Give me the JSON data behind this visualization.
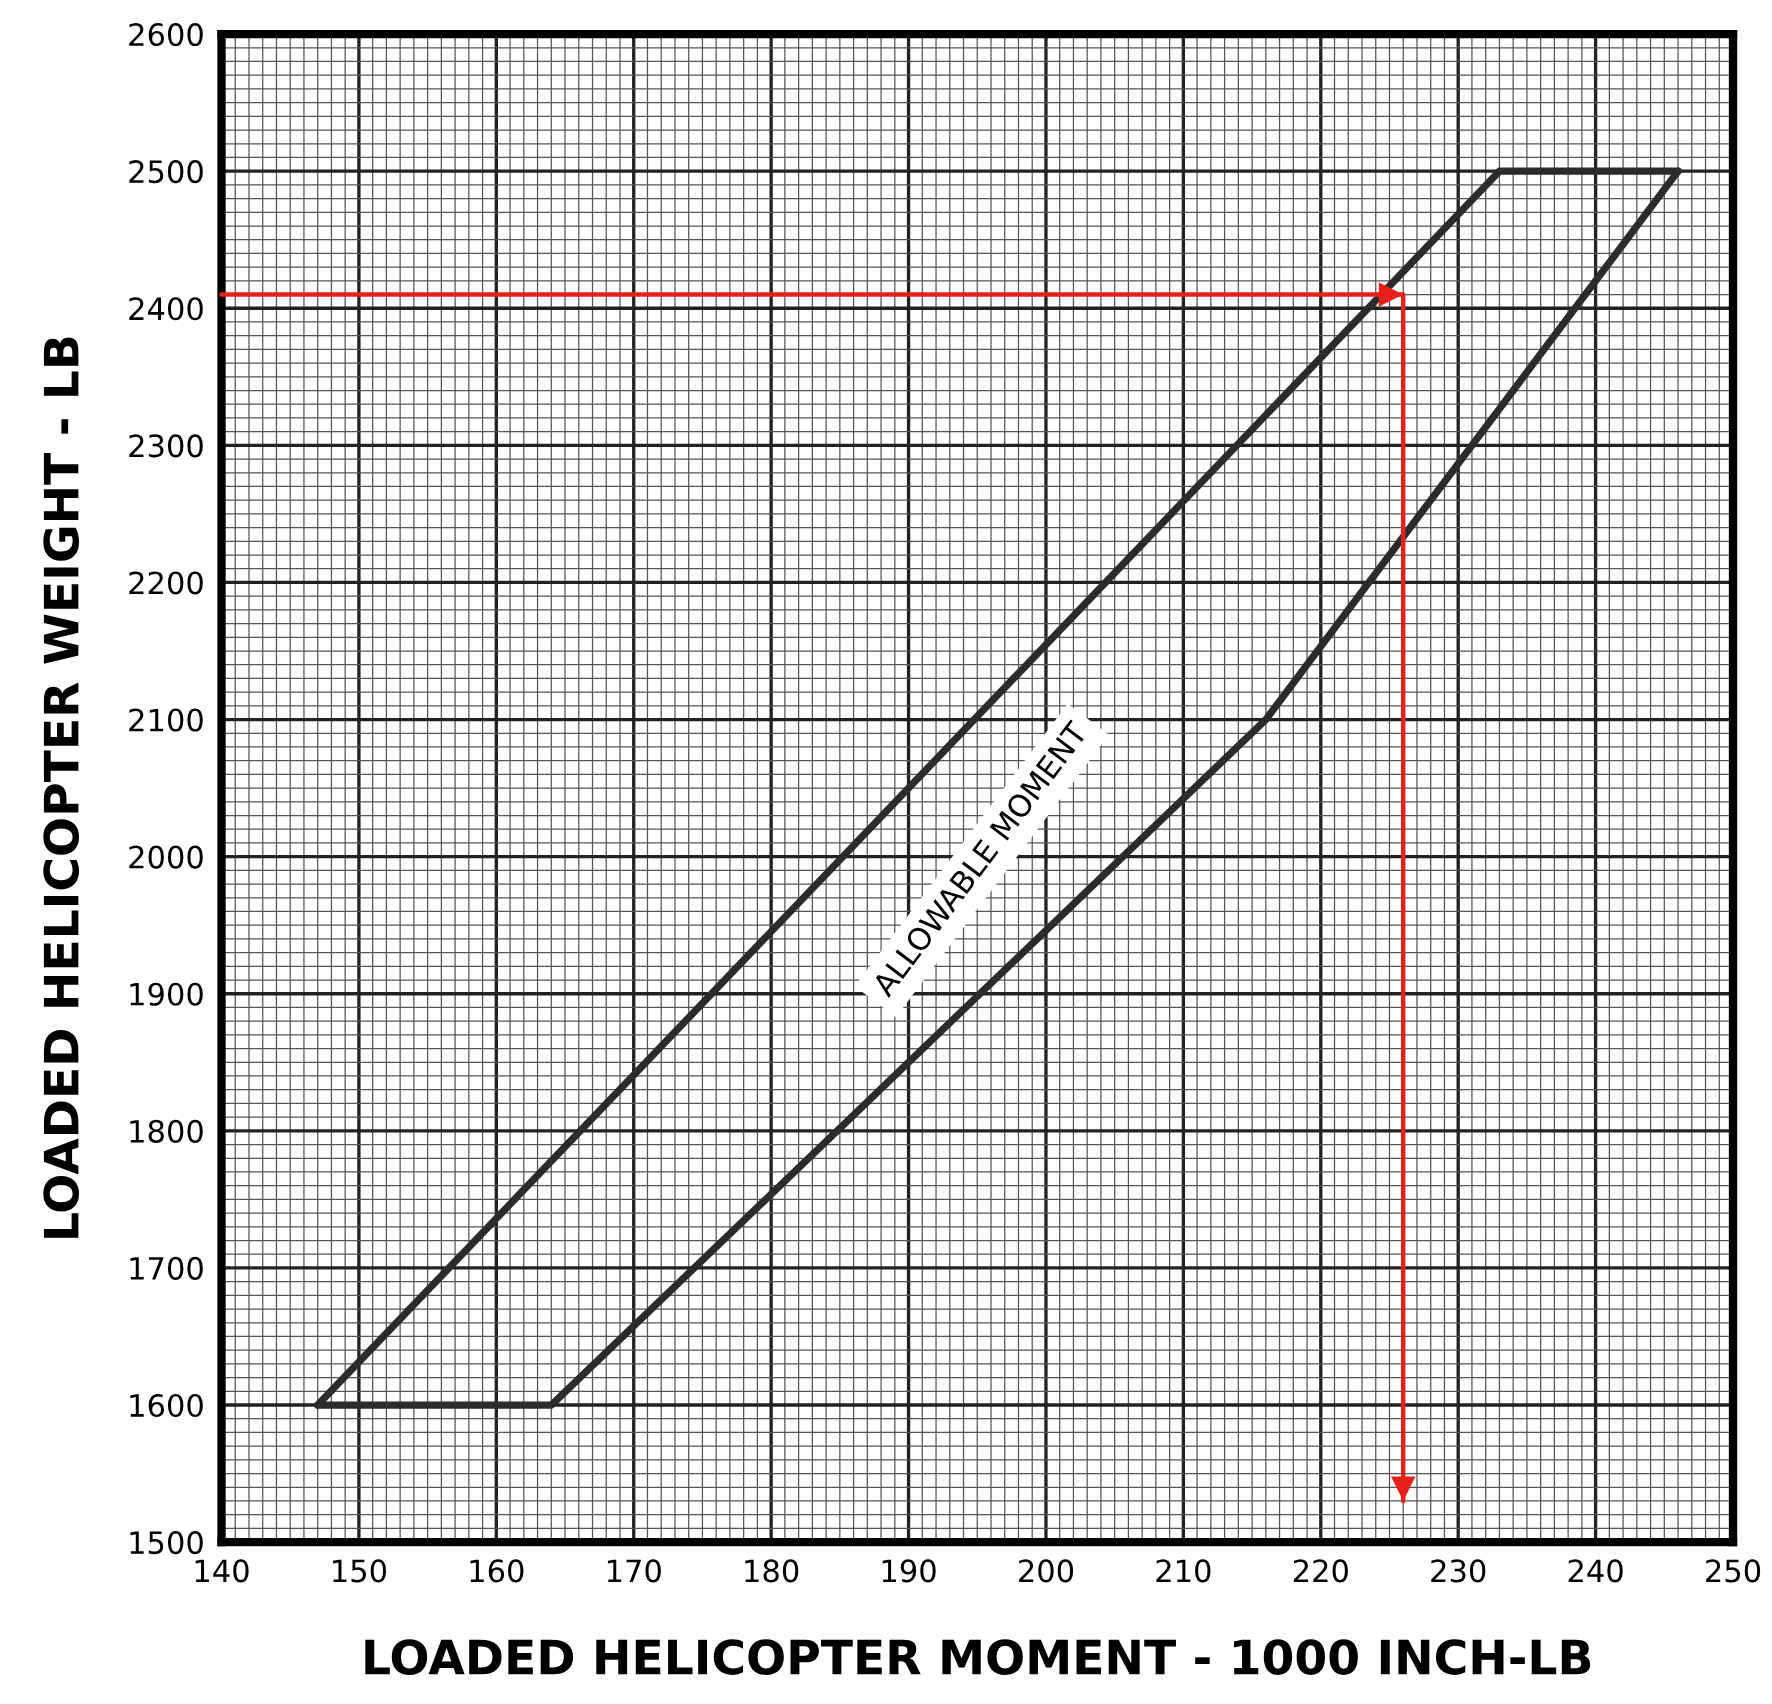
{
  "chart_data": {
    "type": "line",
    "xlabel": "LOADED HELICOPTER MOMENT - 1000 INCH-LB",
    "ylabel": "LOADED HELICOPTER WEIGHT - LB",
    "series": [
      {
        "x": [
          147,
          233,
          246
        ],
        "values": [
          1600,
          2500,
          2500
        ],
        "color": "#2b2b2b"
      },
      {
        "x": [
          147,
          164,
          216,
          246
        ],
        "values": [
          1600,
          1600,
          2100,
          2500
        ],
        "color": "#2b2b2b"
      },
      {
        "x": [
          140,
          226,
          226
        ],
        "values": [
          2410,
          2410,
          1530
        ],
        "color": "#e8201c"
      }
    ],
    "annotations": [
      "ALLOWABLE MOMENT"
    ],
    "xlim": [
      140,
      250
    ],
    "xticks": [
      140,
      150,
      160,
      170,
      180,
      190,
      200,
      210,
      220,
      230,
      240,
      250
    ],
    "ylim": [
      1500,
      2600
    ],
    "yticks": [
      1500,
      1600,
      1700,
      1800,
      1900,
      2000,
      2100,
      2200,
      2300,
      2400,
      2500,
      2600
    ],
    "grid": true,
    "marker": "none",
    "line_style": "solid"
  }
}
